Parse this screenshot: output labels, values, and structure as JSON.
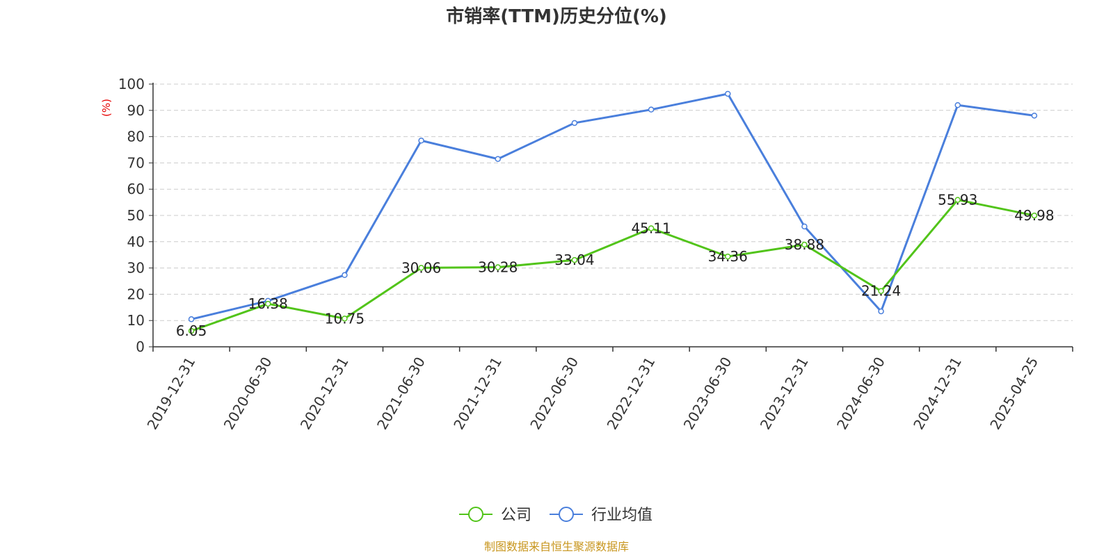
{
  "chart_data": {
    "type": "line",
    "title": "市销率(TTM)历史分位(%)",
    "ylabel": "(%)",
    "ylim": [
      0,
      100
    ],
    "yticks": [
      0,
      10,
      20,
      30,
      40,
      50,
      60,
      70,
      80,
      90,
      100
    ],
    "grid": true,
    "categories": [
      "2019-12-31",
      "2020-06-30",
      "2020-12-31",
      "2021-06-30",
      "2021-12-31",
      "2022-06-30",
      "2022-12-31",
      "2023-06-30",
      "2023-12-31",
      "2024-06-30",
      "2024-12-31",
      "2025-04-25"
    ],
    "series": [
      {
        "name": "公司",
        "color": "#52c41a",
        "show_labels": true,
        "values": [
          6.05,
          16.38,
          10.75,
          30.06,
          30.28,
          33.04,
          45.11,
          34.36,
          38.88,
          21.24,
          55.93,
          49.98
        ]
      },
      {
        "name": "行业均值",
        "color": "#4a7fdc",
        "show_labels": false,
        "values": [
          10.5,
          17.5,
          27.3,
          78.5,
          71.5,
          85.2,
          90.3,
          96.3,
          45.8,
          13.5,
          92.0,
          88.0
        ]
      }
    ],
    "legend_position": "bottom-center",
    "source": "制图数据来自恒生聚源数据库"
  },
  "colors": {
    "title": "#333333",
    "axis": "#333333",
    "grid": "#cccccc",
    "unit_label": "#e60000",
    "source": "#c8961e"
  }
}
